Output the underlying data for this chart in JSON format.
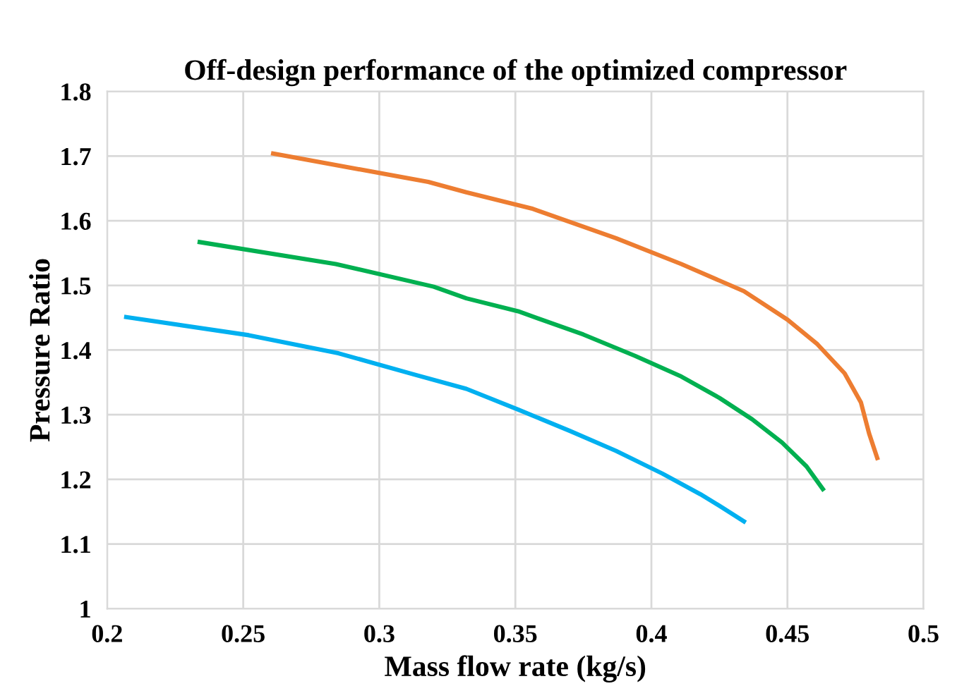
{
  "chart_data": {
    "type": "line",
    "title": "Off-design performance of the optimized compressor",
    "xlabel": "Mass flow rate (kg/s)",
    "ylabel": "Pressure Ratio",
    "xlim": [
      0.2,
      0.5
    ],
    "xticks": [
      0.2,
      0.25,
      0.3,
      0.35,
      0.4,
      0.45,
      0.5
    ],
    "ylim": [
      1,
      1.8
    ],
    "yticks": [
      1,
      1.1,
      1.2,
      1.3,
      1.4,
      1.5,
      1.6,
      1.7,
      1.8
    ],
    "grid": true,
    "marker": "none",
    "line_style": "solid",
    "series": [
      {
        "color": "#ed7d31",
        "x": [
          0.261,
          0.318,
          0.332,
          0.356,
          0.387,
          0.411,
          0.434,
          0.45,
          0.461,
          0.471,
          0.477,
          0.48,
          0.483
        ],
        "values": [
          1.704,
          1.66,
          1.644,
          1.619,
          1.573,
          1.533,
          1.491,
          1.447,
          1.409,
          1.364,
          1.319,
          1.271,
          1.233
        ]
      },
      {
        "color": "#00b050",
        "x": [
          0.234,
          0.284,
          0.32,
          0.332,
          0.351,
          0.375,
          0.394,
          0.411,
          0.425,
          0.437,
          0.448,
          0.457,
          0.463
        ],
        "values": [
          1.567,
          1.533,
          1.498,
          1.48,
          1.46,
          1.424,
          1.391,
          1.359,
          1.326,
          1.293,
          1.257,
          1.22,
          1.185
        ]
      },
      {
        "color": "#00b0f0",
        "x": [
          0.207,
          0.252,
          0.285,
          0.313,
          0.332,
          0.351,
          0.37,
          0.387,
          0.404,
          0.418,
          0.425,
          0.434
        ],
        "values": [
          1.451,
          1.423,
          1.395,
          1.362,
          1.34,
          1.308,
          1.275,
          1.244,
          1.209,
          1.177,
          1.159,
          1.135
        ]
      }
    ]
  }
}
